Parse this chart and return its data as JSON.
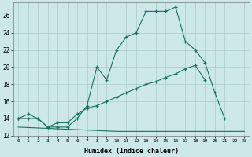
{
  "xlabel": "Humidex (Indice chaleur)",
  "bg_color": "#cce8e8",
  "grid_color": "#aacccc",
  "line_color": "#1a7060",
  "xlim": [
    -0.5,
    23.5
  ],
  "ylim": [
    12,
    27.5
  ],
  "yticks": [
    12,
    14,
    16,
    18,
    20,
    22,
    24,
    26
  ],
  "xticks": [
    0,
    1,
    2,
    3,
    4,
    5,
    6,
    7,
    8,
    9,
    10,
    11,
    12,
    13,
    14,
    15,
    16,
    17,
    18,
    19,
    20,
    21,
    22,
    23
  ],
  "xtick_labels": [
    "0",
    "1",
    "2",
    "3",
    "4",
    "5",
    "6",
    "7",
    "8",
    "9",
    "10",
    "11",
    "12",
    "13",
    "14",
    "15",
    "16",
    "17",
    "18",
    "19",
    "20",
    "21",
    "22",
    "23"
  ],
  "line1_x": [
    0,
    1,
    2,
    3,
    4,
    5,
    6,
    7,
    8,
    9,
    10,
    11,
    12,
    13,
    14,
    15,
    16,
    17,
    18,
    19,
    20,
    21
  ],
  "line1_y": [
    14,
    14,
    14,
    13,
    13,
    13,
    14,
    15.5,
    20,
    18.5,
    22,
    23.5,
    24,
    26.5,
    26.5,
    26.5,
    27,
    23,
    22,
    20.5,
    17,
    14
  ],
  "line2_x": [
    0,
    1,
    2,
    3,
    4,
    5,
    6,
    7,
    8,
    9,
    10,
    11,
    12,
    13,
    14,
    15,
    16,
    17,
    18,
    19
  ],
  "line2_y": [
    14,
    14.5,
    14,
    13,
    13.5,
    13.5,
    14.5,
    15.2,
    15.5,
    16.0,
    16.5,
    17.0,
    17.5,
    18.0,
    18.3,
    18.8,
    19.2,
    19.8,
    20.2,
    18.5
  ],
  "line3_x": [
    0,
    10,
    21,
    23
  ],
  "line3_y": [
    13,
    12.5,
    12.5,
    12.5
  ]
}
